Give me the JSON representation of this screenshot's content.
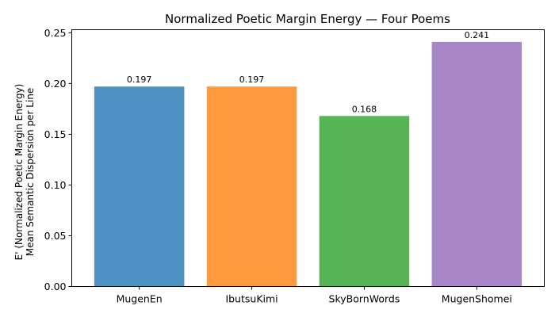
{
  "chart_data": {
    "type": "bar",
    "title": "Normalized Poetic Margin Energy — Four Poems",
    "xlabel": "",
    "ylabel_lines": [
      "E' (Normalized Poetic Margin Energy)",
      "Mean Semantic Dispersion per Line"
    ],
    "categories": [
      "MugenEn",
      "IbutsuKimi",
      "SkyBornWords",
      "MugenShomei"
    ],
    "values": [
      0.197,
      0.197,
      0.168,
      0.241
    ],
    "data_labels": [
      "0.197",
      "0.197",
      "0.168",
      "0.241"
    ],
    "colors": [
      "#4c92c3",
      "#ff993e",
      "#56b356",
      "#a986c8"
    ],
    "ylim": [
      0,
      0.253
    ],
    "yticks": [
      0.0,
      0.05,
      0.1,
      0.15,
      0.2,
      0.25
    ],
    "ytick_labels": [
      "0.00",
      "0.05",
      "0.10",
      "0.15",
      "0.20",
      "0.25"
    ],
    "grid": false,
    "legend": "none"
  }
}
